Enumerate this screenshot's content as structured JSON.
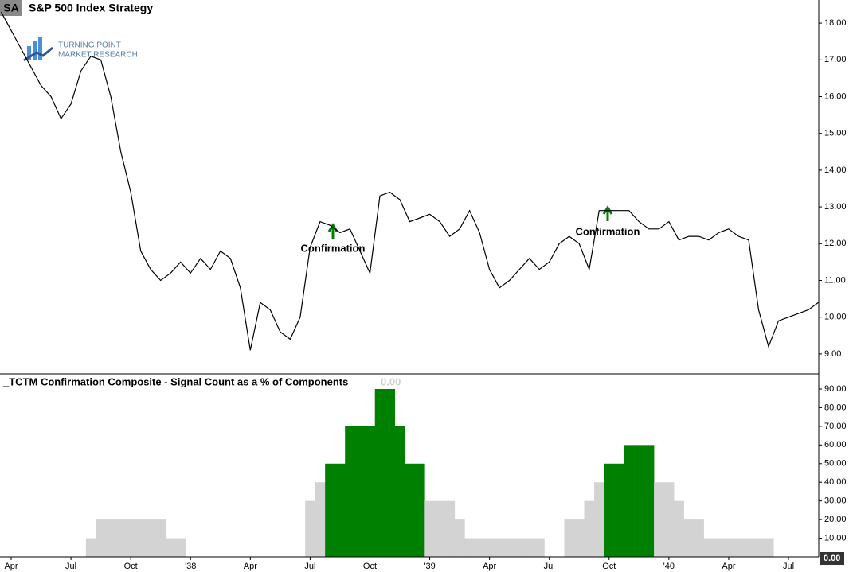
{
  "header": {
    "symbol": "SA",
    "title": "S&P 500 Index  Strategy"
  },
  "logo": {
    "line1": "TURNING POINT",
    "line2": "MARKET RESEARCH"
  },
  "annotations": [
    {
      "text": "Confirmation"
    },
    {
      "text": "Confirmation"
    }
  ],
  "chart_data": [
    {
      "type": "line",
      "color": "#000000",
      "values": [
        18.3,
        17.8,
        17.3,
        16.8,
        16.3,
        16.0,
        15.4,
        15.8,
        16.7,
        17.1,
        17.0,
        16.0,
        14.5,
        13.4,
        11.8,
        11.3,
        11.0,
        11.2,
        11.5,
        11.2,
        11.6,
        11.3,
        11.8,
        11.6,
        10.8,
        9.1,
        10.4,
        10.2,
        9.6,
        9.4,
        10.0,
        11.9,
        12.6,
        12.5,
        12.3,
        12.4,
        11.8,
        11.2,
        13.3,
        13.4,
        13.2,
        12.6,
        12.7,
        12.8,
        12.6,
        12.2,
        12.4,
        12.9,
        12.3,
        11.3,
        10.8,
        11.0,
        11.3,
        11.6,
        11.3,
        11.5,
        12.0,
        12.2,
        12.0,
        11.3,
        12.9,
        12.9,
        12.9,
        12.9,
        12.6,
        12.4,
        12.4,
        12.6,
        12.1,
        12.2,
        12.2,
        12.1,
        12.3,
        12.4,
        12.2,
        12.1,
        10.2,
        9.2,
        9.9,
        10.0,
        10.1,
        10.2,
        10.4
      ],
      "ylim": [
        8.5,
        18.63
      ],
      "yticks": [
        {
          "value": 9,
          "label": "9.00"
        },
        {
          "value": 10,
          "label": "10.00"
        },
        {
          "value": 11,
          "label": "11.00"
        },
        {
          "value": 12,
          "label": "12.00"
        },
        {
          "value": 13,
          "label": "13.00"
        },
        {
          "value": 14,
          "label": "14.00"
        },
        {
          "value": 15,
          "label": "15.00"
        },
        {
          "value": 16,
          "label": "16.00"
        },
        {
          "value": 17,
          "label": "17.00"
        },
        {
          "value": 18,
          "label": "18.00"
        }
      ]
    },
    {
      "type": "bar",
      "title": "_TCTM Confirmation Composite - Signal Count as a % of Components",
      "last_value": {
        "value": 0,
        "label": "0.00"
      },
      "categories": [
        null,
        "Apr",
        null,
        null,
        null,
        null,
        null,
        "Jul",
        null,
        null,
        null,
        null,
        null,
        "Oct",
        null,
        null,
        null,
        null,
        null,
        "'38",
        null,
        null,
        null,
        null,
        null,
        "Apr",
        null,
        null,
        null,
        null,
        null,
        "Jul",
        null,
        null,
        null,
        null,
        null,
        "Oct",
        null,
        null,
        null,
        null,
        null,
        "'39",
        null,
        null,
        null,
        null,
        null,
        "Apr",
        null,
        null,
        null,
        null,
        null,
        "Jul",
        null,
        null,
        null,
        null,
        null,
        "Oct",
        null,
        null,
        null,
        null,
        null,
        "'40",
        null,
        null,
        null,
        null,
        null,
        "Apr",
        null,
        null,
        null,
        null,
        null,
        "Jul",
        null,
        null,
        null
      ],
      "values": [
        0,
        0,
        0,
        0,
        0,
        0,
        0,
        0,
        0,
        10,
        20,
        20,
        20,
        20,
        20,
        20,
        20,
        10,
        10,
        0,
        0,
        0,
        0,
        0,
        0,
        0,
        0,
        0,
        0,
        0,
        0,
        30,
        40,
        50,
        50,
        70,
        70,
        70,
        90,
        90,
        70,
        50,
        50,
        30,
        30,
        30,
        20,
        10,
        10,
        10,
        10,
        10,
        10,
        10,
        10,
        0,
        0,
        20,
        20,
        30,
        40,
        50,
        50,
        60,
        60,
        60,
        40,
        40,
        30,
        20,
        20,
        10,
        10,
        10,
        10,
        10,
        10,
        10,
        0,
        0,
        0,
        0,
        0
      ],
      "colors": [
        "#d3d3d3",
        "#d3d3d3",
        "#d3d3d3",
        "#d3d3d3",
        "#d3d3d3",
        "#d3d3d3",
        "#d3d3d3",
        "#d3d3d3",
        "#d3d3d3",
        "#d3d3d3",
        "#d3d3d3",
        "#d3d3d3",
        "#d3d3d3",
        "#d3d3d3",
        "#d3d3d3",
        "#d3d3d3",
        "#d3d3d3",
        "#d3d3d3",
        "#d3d3d3",
        "#d3d3d3",
        "#d3d3d3",
        "#d3d3d3",
        "#d3d3d3",
        "#d3d3d3",
        "#d3d3d3",
        "#d3d3d3",
        "#d3d3d3",
        "#d3d3d3",
        "#d3d3d3",
        "#d3d3d3",
        "#d3d3d3",
        "#d3d3d3",
        "#d3d3d3",
        "#008000",
        "#008000",
        "#008000",
        "#008000",
        "#008000",
        "#008000",
        "#008000",
        "#008000",
        "#008000",
        "#008000",
        "#d3d3d3",
        "#d3d3d3",
        "#d3d3d3",
        "#d3d3d3",
        "#d3d3d3",
        "#d3d3d3",
        "#d3d3d3",
        "#d3d3d3",
        "#d3d3d3",
        "#d3d3d3",
        "#d3d3d3",
        "#d3d3d3",
        "#d3d3d3",
        "#d3d3d3",
        "#d3d3d3",
        "#d3d3d3",
        "#d3d3d3",
        "#d3d3d3",
        "#008000",
        "#008000",
        "#008000",
        "#008000",
        "#008000",
        "#d3d3d3",
        "#d3d3d3",
        "#d3d3d3",
        "#d3d3d3",
        "#d3d3d3",
        "#d3d3d3",
        "#d3d3d3",
        "#d3d3d3",
        "#d3d3d3",
        "#d3d3d3",
        "#d3d3d3",
        "#d3d3d3",
        "#d3d3d3",
        "#d3d3d3",
        "#d3d3d3",
        "#d3d3d3",
        "#d3d3d3"
      ],
      "ylim": [
        0,
        96.4
      ],
      "yticks": [
        {
          "value": 10,
          "label": "10.00"
        },
        {
          "value": 20,
          "label": "20.00"
        },
        {
          "value": 30,
          "label": "30.00"
        },
        {
          "value": 40,
          "label": "40.00"
        },
        {
          "value": 50,
          "label": "50.00"
        },
        {
          "value": 60,
          "label": "60.00"
        },
        {
          "value": 70,
          "label": "70.00"
        },
        {
          "value": 80,
          "label": "80.00"
        },
        {
          "value": 90,
          "label": "90.00"
        }
      ]
    }
  ]
}
